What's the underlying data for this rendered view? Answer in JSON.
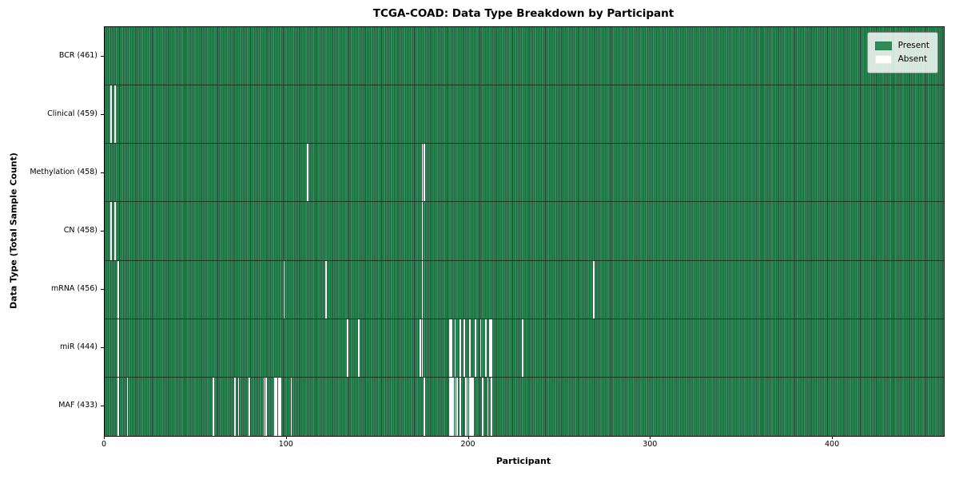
{
  "figure": {
    "title": "TCGA-COAD: Data Type Breakdown by Participant",
    "xlabel": "Participant",
    "ylabel": "Data Type (Total Sample Count)"
  },
  "legend": {
    "items": [
      {
        "label": "Present",
        "color": "#2f8b58"
      },
      {
        "label": "Absent",
        "color": "#ffffff"
      }
    ]
  },
  "chart_data": {
    "type": "heatmap",
    "title": "TCGA-COAD: Data Type Breakdown by Participant",
    "xlabel": "Participant",
    "ylabel": "Data Type (Total Sample Count)",
    "n_participants": 461,
    "x_ticks": [
      0,
      100,
      200,
      300,
      400
    ],
    "xlim": [
      0,
      461
    ],
    "legend_position": "upper right",
    "colors": {
      "present": "#2f8b58",
      "absent": "#ffffff",
      "bar_edge": "#16402a"
    },
    "rows": [
      {
        "label": "BCR (461)",
        "data_type": "BCR",
        "present_count": 461,
        "absent_count": 0,
        "absent_participants": []
      },
      {
        "label": "Clinical (459)",
        "data_type": "Clinical",
        "present_count": 459,
        "absent_count": 2,
        "absent_participants": [
          3,
          5
        ]
      },
      {
        "label": "Methylation (458)",
        "data_type": "Methylation",
        "present_count": 458,
        "absent_count": 3,
        "absent_participants": [
          111,
          174,
          175
        ]
      },
      {
        "label": "CN (458)",
        "data_type": "CN",
        "present_count": 458,
        "absent_count": 3,
        "absent_participants": [
          3,
          5,
          174
        ]
      },
      {
        "label": "mRNA (456)",
        "data_type": "mRNA",
        "present_count": 456,
        "absent_count": 5,
        "absent_participants": [
          7,
          98,
          121,
          174,
          268
        ]
      },
      {
        "label": "miR (444)",
        "data_type": "miR",
        "present_count": 444,
        "absent_count": 17,
        "absent_participants": [
          7,
          133,
          139,
          173,
          174,
          189,
          190,
          192,
          195,
          197,
          200,
          203,
          206,
          209,
          211,
          212,
          229
        ]
      },
      {
        "label": "MAF (433)",
        "data_type": "MAF",
        "present_count": 433,
        "absent_count": 28,
        "absent_participants": [
          7,
          12,
          59,
          71,
          73,
          79,
          87,
          88,
          93,
          94,
          95,
          96,
          102,
          175,
          189,
          190,
          191,
          192,
          193,
          195,
          198,
          199,
          200,
          201,
          202,
          207,
          210,
          212
        ]
      }
    ]
  }
}
